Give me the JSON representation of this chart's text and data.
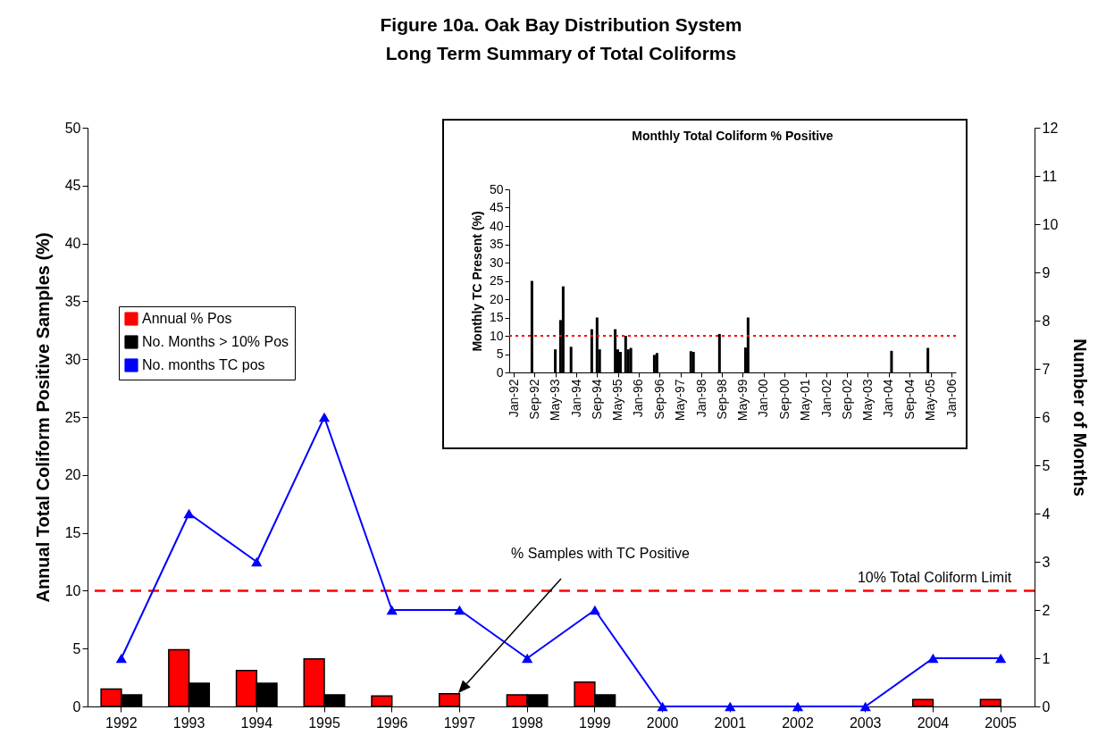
{
  "chart_data": [
    {
      "type": "bar",
      "title": "Figure 10a.  Oak Bay Distribution System\nLong Term Summary of Total Coliforms",
      "ylabel": "Annual Total Coliform Positive Samples (%)",
      "y2label": "Number of Months",
      "categories": [
        "1992",
        "1993",
        "1994",
        "1995",
        "1996",
        "1997",
        "1998",
        "1999",
        "2000",
        "2001",
        "2002",
        "2003",
        "2004",
        "2005"
      ],
      "series": [
        {
          "name": "Annual % Pos",
          "color": "#ff0000",
          "values": [
            1.5,
            4.9,
            3.1,
            4.1,
            0.9,
            1.1,
            1.0,
            2.1,
            0,
            0,
            0,
            0,
            0.6,
            0.6
          ]
        },
        {
          "name": "No. Months > 10% Pos",
          "color": "#000000",
          "values": [
            1,
            2,
            2,
            1,
            0,
            0,
            1,
            1,
            0,
            0,
            0,
            0,
            0,
            0
          ]
        },
        {
          "name": "No. months TC pos",
          "color": "#0000ff",
          "type": "line",
          "axis": "y2",
          "marker": "triangle",
          "values": [
            1,
            4,
            3,
            6,
            2,
            2,
            1,
            2,
            0,
            0,
            0,
            0,
            1,
            1
          ]
        }
      ],
      "ylim": [
        0,
        50
      ],
      "yticks": [
        0,
        5,
        10,
        15,
        20,
        25,
        30,
        35,
        40,
        45,
        50
      ],
      "y2lim": [
        0,
        12
      ],
      "y2ticks": [
        0,
        1,
        2,
        3,
        4,
        5,
        6,
        7,
        8,
        9,
        10,
        11,
        12
      ],
      "ref_lines": [
        {
          "axis": "y",
          "value": 10,
          "label": "10% Total Coliform Limit",
          "color": "#ff0000",
          "line_style": "dashed"
        }
      ],
      "annotations": [
        "% Samples with TC Positive"
      ],
      "legend": "left",
      "grid": false
    },
    {
      "type": "bar",
      "title": "Monthly Total Coliform % Positive",
      "ylabel": "Monthly TC Present (%)",
      "x": [
        "1992-08",
        "1993-05",
        "1993-07",
        "1993-08",
        "1993-11",
        "1994-07",
        "1994-09",
        "1994-10",
        "1995-04",
        "1995-05",
        "1995-06",
        "1995-08",
        "1995-09",
        "1995-10",
        "1996-07",
        "1996-08",
        "1997-09",
        "1997-10",
        "1998-08",
        "1999-06",
        "1999-07",
        "2004-02",
        "2005-04"
      ],
      "values": [
        25,
        6.3,
        14.3,
        23.5,
        7,
        11.8,
        15,
        6.3,
        11.8,
        6.3,
        5.6,
        10,
        6.3,
        6.7,
        4.8,
        5.3,
        5.8,
        5.6,
        10.5,
        6.8,
        15,
        5.9,
        6.7
      ],
      "color": "#000000",
      "xlim": [
        "1992-01",
        "2006-01"
      ],
      "xticks": [
        {
          "value": "1992-01",
          "label": "Jan-92"
        },
        {
          "value": "1992-09",
          "label": "Sep-92"
        },
        {
          "value": "1993-05",
          "label": "May-93"
        },
        {
          "value": "1994-01",
          "label": "Jan-94"
        },
        {
          "value": "1994-09",
          "label": "Sep-94"
        },
        {
          "value": "1995-05",
          "label": "May-95"
        },
        {
          "value": "1996-01",
          "label": "Jan-96"
        },
        {
          "value": "1996-09",
          "label": "Sep-96"
        },
        {
          "value": "1997-05",
          "label": "May-97"
        },
        {
          "value": "1998-01",
          "label": "Jan-98"
        },
        {
          "value": "1998-09",
          "label": "Sep-98"
        },
        {
          "value": "1999-05",
          "label": "May-99"
        },
        {
          "value": "2000-01",
          "label": "Jan-00"
        },
        {
          "value": "2000-09",
          "label": "Sep-00"
        },
        {
          "value": "2001-05",
          "label": "May-01"
        },
        {
          "value": "2002-01",
          "label": "Jan-02"
        },
        {
          "value": "2002-09",
          "label": "Sep-02"
        },
        {
          "value": "2003-05",
          "label": "May-03"
        },
        {
          "value": "2004-01",
          "label": "Jan-04"
        },
        {
          "value": "2004-09",
          "label": "Sep-04"
        },
        {
          "value": "2005-05",
          "label": "May-05"
        },
        {
          "value": "2006-01",
          "label": "Jan-06"
        }
      ],
      "ylim": [
        0,
        50
      ],
      "yticks": [
        0,
        5,
        10,
        15,
        20,
        25,
        30,
        35,
        40,
        45,
        50
      ],
      "ref_lines": [
        {
          "axis": "y",
          "value": 10,
          "color": "#ff0000",
          "line_style": "dotted"
        }
      ],
      "grid": false
    }
  ]
}
